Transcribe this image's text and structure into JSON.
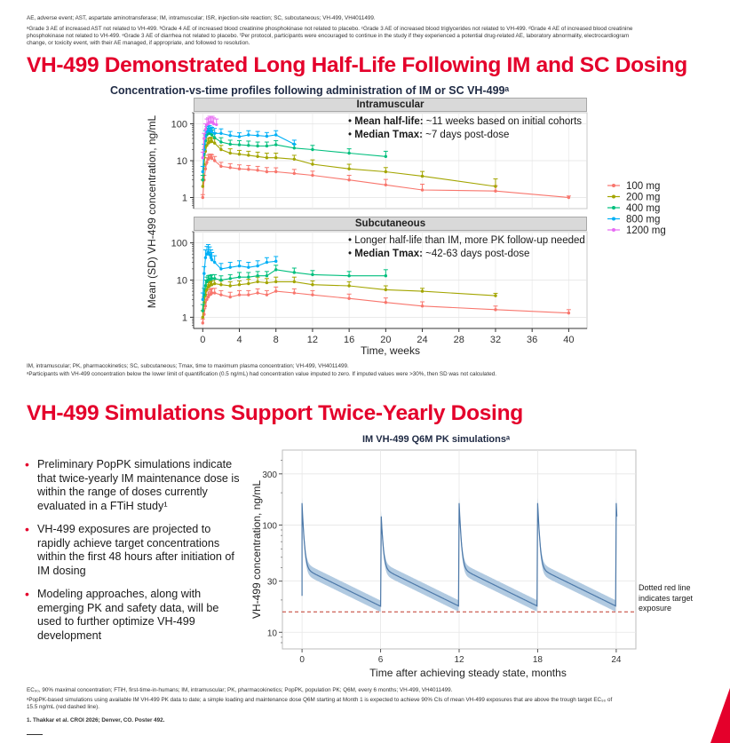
{
  "footnotes_top": {
    "abbrev": "AE, adverse event; AST, aspartate aminotransferase; IM, intramuscular; ISR, injection-site reaction; SC, subcutaneous; VH-499, VH4011499.",
    "grades_line1": "ᵃGrade 3 AE of increased AST not related to VH-499. ᵇGrade 4 AE of increased blood creatinine phosphokinase not related to placebo. ᶜGrade 3 AE of increased blood triglycerides not related to VH-499. ᵈGrade 4 AE of increased blood creatinine",
    "grades_line2": "phosphokinase not related to VH-499. ᵉGrade 3 AE of diarrhea not related to placebo. ᶠPer protocol, participants were encouraged to continue in the study if they experienced a potential drug-related AE, laboratory abnormality, electrocardiogram",
    "grades_line3": "change, or toxicity event, with their AE managed, if appropriate, and followed to resolution."
  },
  "section1": {
    "heading": "VH-499 Demonstrated Long Half-Life Following IM and SC Dosing",
    "subtitle": "Concentration-vs-time profiles following administration of IM or SC VH-499ᵃ",
    "footnote1": "IM, intramuscular; PK, pharmacokinetics; SC, subcutaneous; Tmax, time to maximum plasma concentration; VH-499, VH4011499.",
    "footnote2": "ᵃParticipants with VH-499 concentration below the lower limit of quantification (0.5 ng/mL) had concentration value imputed to zero. If imputed values were >30%, then SD was not calculated."
  },
  "section2": {
    "heading": "VH-499 Simulations Support Twice-Yearly Dosing",
    "bullets": [
      "Preliminary PopPK simulations indicate that twice-yearly IM maintenance dose is within the range of doses currently evaluated in a FTiH study¹",
      "VH-499 exposures are projected to rapidly achieve target concentrations within the first 48 hours after initiation of IM dosing",
      "Modeling approaches, along with emerging PK and safety data, will be used to further optimize VH-499 development"
    ],
    "footnote1": "EC₉₀, 90% maximal concentration; FTiH, first-time-in-humans; IM, intramuscular; PK, pharmacokinetics; PopPK, population PK; Q6M, every 6 months; VH-499, VH4011499.",
    "footnote2a": "ᵃPopPK-based simulations using available IM VH-499 PK data to date; a simple loading and maintenance dose Q6M starting at Month 1 is expected to achieve 90% CIs of mean VH-499 exposures that are above the trough target EC₉₀ of",
    "footnote2b": "15.5 ng/mL (red dashed line).",
    "reference": "1. Thakkar et al. CROI 2026; Denver, CO. Poster 492."
  },
  "chart_data": [
    {
      "type": "line",
      "title": "Concentration-vs-time profiles following administration of IM or SC VH-499ᵃ",
      "xlabel": "Time, weeks",
      "ylabel": "Mean (SD) VH-499 concentration, ng/mL",
      "xlim": [
        -1,
        42
      ],
      "x_ticks": [
        0,
        4,
        8,
        12,
        16,
        20,
        24,
        28,
        32,
        36,
        40
      ],
      "y_scale": "log",
      "y_ticks": [
        1,
        10,
        100
      ],
      "ylim": [
        0.5,
        200
      ],
      "grid": true,
      "legend_position": "right",
      "legend": [
        "100 mg",
        "200 mg",
        "400 mg",
        "800 mg",
        "1200 mg"
      ],
      "colors": {
        "100 mg": "#f8766d",
        "200 mg": "#a3a500",
        "400 mg": "#00bf7d",
        "800 mg": "#00b0f6",
        "1200 mg": "#e76bf3"
      },
      "panels": [
        {
          "strip": "Intramuscular",
          "annotations": [
            {
              "bold": "Mean half-life:",
              "text": " ~11 weeks based on initial cohorts"
            },
            {
              "bold": "Median Tmax:",
              "text": " ~7 days post-dose"
            }
          ],
          "series": [
            {
              "name": "100 mg",
              "x": [
                0,
                0.15,
                0.3,
                0.45,
                0.6,
                0.75,
                0.9,
                1.0,
                1.3,
                2,
                3,
                4,
                5,
                6,
                7,
                8,
                10,
                12,
                16,
                20,
                24,
                32,
                40
              ],
              "values": [
                1,
                3,
                6,
                9,
                11,
                12,
                12,
                11.5,
                10,
                7,
                6.5,
                6,
                5.8,
                5.5,
                5,
                5,
                4.5,
                4,
                3,
                2.2,
                1.6,
                1.5,
                1.0
              ],
              "sd": [
                0.2,
                1,
                2,
                3,
                3,
                3,
                3,
                3,
                3,
                2,
                1.8,
                1.7,
                1.6,
                1.5,
                1.5,
                1.4,
                1.3,
                1.2,
                1,
                0.9,
                0.7,
                0.6,
                0.1
              ]
            },
            {
              "name": "200 mg",
              "x": [
                0,
                0.15,
                0.3,
                0.45,
                0.6,
                0.75,
                0.9,
                1.0,
                1.3,
                2,
                3,
                4,
                5,
                6,
                7,
                8,
                10,
                12,
                16,
                20,
                24,
                32
              ],
              "values": [
                2,
                8,
                18,
                26,
                30,
                32,
                33,
                33,
                30,
                20,
                16,
                15,
                14,
                13,
                12,
                12,
                11,
                8,
                6,
                5,
                3.8,
                2
              ],
              "sd": [
                1,
                4,
                8,
                10,
                10,
                10,
                10,
                10,
                9,
                6,
                5,
                4,
                4,
                4,
                4,
                4,
                3,
                2.5,
                2,
                1.5,
                1.3,
                1.2
              ]
            },
            {
              "name": "400 mg",
              "x": [
                0,
                0.15,
                0.3,
                0.45,
                0.6,
                0.75,
                0.9,
                1.0,
                1.3,
                2,
                3,
                4,
                5,
                6,
                7,
                8,
                10,
                12,
                16,
                20
              ],
              "values": [
                3,
                15,
                35,
                50,
                55,
                55,
                55,
                50,
                42,
                32,
                28,
                27,
                26,
                25,
                25,
                27,
                22,
                20,
                16,
                13
              ],
              "sd": [
                1,
                5,
                15,
                20,
                20,
                20,
                20,
                18,
                15,
                10,
                8,
                8,
                8,
                7,
                7,
                8,
                6,
                6,
                5,
                5
              ]
            },
            {
              "name": "800 mg",
              "x": [
                0,
                0.15,
                0.3,
                0.45,
                0.6,
                0.75,
                0.9,
                1.0,
                1.3,
                2,
                3,
                4,
                5,
                6,
                7,
                8,
                10
              ],
              "values": [
                5,
                20,
                45,
                60,
                65,
                65,
                62,
                60,
                55,
                55,
                48,
                45,
                50,
                48,
                46,
                50,
                28
              ],
              "sd": [
                2,
                8,
                20,
                25,
                25,
                25,
                20,
                20,
                20,
                18,
                14,
                12,
                15,
                14,
                12,
                15,
                8
              ]
            },
            {
              "name": "1200 mg",
              "x": [
                0,
                0.15,
                0.3,
                0.45,
                0.6,
                0.75,
                0.9,
                1.05,
                1.2,
                1.5
              ],
              "values": [
                12,
                40,
                70,
                95,
                100,
                110,
                110,
                110,
                100,
                95
              ],
              "sd": [
                5,
                15,
                30,
                40,
                45,
                50,
                50,
                50,
                45,
                40
              ]
            }
          ]
        },
        {
          "strip": "Subcutaneous",
          "annotations": [
            {
              "bold": "",
              "text": "Longer half-life than IM, more PK follow-up needed"
            },
            {
              "bold": "Median Tmax:",
              "text": " ~42-63 days post-dose"
            }
          ],
          "series": [
            {
              "name": "100 mg",
              "x": [
                0,
                0.15,
                0.3,
                0.45,
                0.6,
                0.75,
                0.9,
                1.0,
                1.3,
                2,
                3,
                4,
                5,
                6,
                7,
                8,
                10,
                12,
                16,
                20,
                24,
                32,
                40
              ],
              "values": [
                0.7,
                1.2,
                2,
                3,
                3.5,
                4,
                4.2,
                4.5,
                4.5,
                4,
                3.5,
                4,
                4,
                4.5,
                4,
                5,
                4.5,
                4,
                3.2,
                2.5,
                2,
                1.6,
                1.3
              ],
              "sd": [
                0.2,
                0.5,
                1,
                1.2,
                1.3,
                1.5,
                1.5,
                1.5,
                1.5,
                1.2,
                1.2,
                1.2,
                1.2,
                1.3,
                1.2,
                1.5,
                1.3,
                1.2,
                1,
                0.8,
                0.6,
                0.4,
                0.3
              ]
            },
            {
              "name": "200 mg",
              "x": [
                0,
                0.15,
                0.3,
                0.45,
                0.6,
                0.75,
                0.9,
                1.0,
                1.3,
                2,
                3,
                4,
                5,
                6,
                7,
                8,
                10,
                12,
                16,
                20,
                24,
                32
              ],
              "values": [
                1,
                2.5,
                4,
                5.5,
                6.5,
                7,
                7.5,
                7.5,
                8,
                7.5,
                7,
                7.5,
                8,
                9,
                8.5,
                9,
                9,
                7.5,
                7,
                5.5,
                5,
                3.8
              ],
              "sd": [
                0.5,
                1,
                1.5,
                2,
                2,
                2,
                2,
                2,
                2.5,
                2,
                2,
                2,
                2.5,
                3,
                2.5,
                3,
                3,
                2,
                2,
                1.5,
                1,
                0.6
              ]
            },
            {
              "name": "400 mg",
              "x": [
                0,
                0.15,
                0.3,
                0.45,
                0.6,
                0.75,
                0.9,
                1.0,
                1.3,
                2,
                3,
                4,
                5,
                6,
                7,
                8,
                10,
                12,
                16,
                20
              ],
              "values": [
                1.5,
                4,
                7,
                9,
                10,
                10.5,
                10.5,
                11,
                11,
                10,
                11,
                12,
                12,
                13,
                13,
                19,
                16,
                14,
                13,
                13
              ],
              "sd": [
                0.7,
                2,
                3,
                3,
                3,
                3,
                3,
                3,
                3,
                3,
                3,
                4,
                4,
                4,
                4,
                6,
                5,
                4,
                4,
                6
              ]
            },
            {
              "name": "800 mg",
              "x": [
                0,
                0.15,
                0.3,
                0.45,
                0.6,
                0.75,
                0.9,
                1.0,
                1.3,
                2,
                3,
                4,
                5,
                6,
                7,
                8
              ],
              "values": [
                3,
                15,
                40,
                50,
                55,
                48,
                40,
                35,
                30,
                20,
                22,
                24,
                22,
                24,
                30,
                32
              ],
              "sd": [
                1.5,
                8,
                25,
                30,
                35,
                30,
                25,
                20,
                15,
                8,
                8,
                9,
                8,
                9,
                10,
                11
              ]
            }
          ]
        }
      ]
    },
    {
      "type": "area",
      "title": "IM VH-499 Q6M PK simulationsᵃ",
      "xlabel": "Time after achieving steady state, months",
      "ylabel": "VH-499 concentration, ng/mL",
      "x_ticks": [
        0,
        6,
        12,
        18,
        24
      ],
      "xlim": [
        -1.5,
        25.5
      ],
      "y_scale": "log",
      "y_ticks": [
        10,
        30,
        100,
        300
      ],
      "ylim": [
        7,
        500
      ],
      "grid": true,
      "target": {
        "value": 15.5,
        "label": "Dotted red line indicates target exposure"
      },
      "dose_months": [
        0,
        6,
        12,
        18
      ],
      "peak": 160,
      "trough": 17.5,
      "ci_factor": 1.13
    }
  ]
}
